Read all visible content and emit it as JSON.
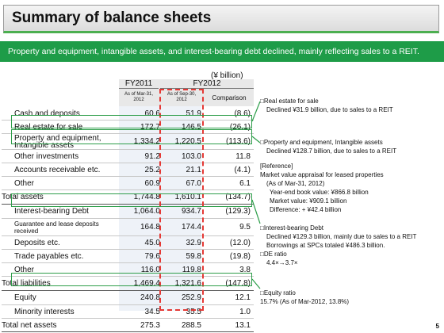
{
  "title": "Summary of balance sheets",
  "subtitle": "Property and equipment, intangible assets, and interest-bearing debt declined, mainly reflecting sales to a REIT.",
  "unit": "(¥ billion)",
  "header": {
    "fy2011": "FY2011",
    "fy2012": "FY2012",
    "asof_mar": "As of Mar-31, 2012",
    "asof_sep": "As of Sep-30, 2012",
    "comparison": "Comparison"
  },
  "rows": [
    {
      "label": "Cash and deposits",
      "v1": "60.6",
      "v2": "51.9",
      "v3": "(8.6)"
    },
    {
      "label": "Real estate for sale",
      "v1": "172.7",
      "v2": "146.5",
      "v3": "(26.1)"
    },
    {
      "label": "Property and equipment, Intangible assets",
      "v1": "1,334.2",
      "v2": "1,220.5",
      "v3": "(113.6)"
    },
    {
      "label": "Other investments",
      "v1": "91.2",
      "v2": "103.0",
      "v3": "11.8"
    },
    {
      "label": "Accounts receivable etc.",
      "v1": "25.2",
      "v2": "21.1",
      "v3": "(4.1)"
    },
    {
      "label": "Other",
      "v1": "60.9",
      "v2": "67.0",
      "v3": "6.1"
    },
    {
      "label": "Total assets",
      "v1": "1,744.8",
      "v2": "1,610.1",
      "v3": "(134.7)"
    },
    {
      "label": "Interest-bearing Debt",
      "v1": "1,064.0",
      "v2": "934.7",
      "v3": "(129.3)"
    },
    {
      "label": "Guarantee and lease deposits received",
      "v1": "164.8",
      "v2": "174.4",
      "v3": "9.5"
    },
    {
      "label": "Deposits etc.",
      "v1": "45.0",
      "v2": "32.9",
      "v3": "(12.0)"
    },
    {
      "label": "Trade payables etc.",
      "v1": "79.6",
      "v2": "59.8",
      "v3": "(19.8)"
    },
    {
      "label": "Other",
      "v1": "116.0",
      "v2": "119.8",
      "v3": "3.8"
    },
    {
      "label": "Total liabilities",
      "v1": "1,469.4",
      "v2": "1,321.6",
      "v3": "(147.8)"
    },
    {
      "label": "Equity",
      "v1": "240.8",
      "v2": "252.9",
      "v3": "12.1"
    },
    {
      "label": "Minority interests",
      "v1": "34.5",
      "v2": "35.5",
      "v3": "1.0"
    },
    {
      "label": "Total net assets",
      "v1": "275.3",
      "v2": "288.5",
      "v3": "13.1"
    }
  ],
  "notes": {
    "n1": [
      "□Real estate for sale",
      "Declined ¥31.9 billion, due to sales to a REIT"
    ],
    "n2": [
      "□Property and equipment, Intangible assets",
      "Declined ¥128.7 billion, due to sales to a REIT"
    ],
    "n3": [
      "[Reference]",
      "Market value appraisal for leased properties",
      "(As of Mar-31, 2012)",
      "Year-end book value: ¥866.8 billion",
      "Market value: ¥909.1 billion",
      "Difference: + ¥42.4 billion"
    ],
    "n4": [
      "□Interest-bearing Debt",
      "Declined ¥129.3 billion, mainly due to sales to a REIT",
      "Borrowings at SPCs totaled ¥486.3 billion.",
      "□DE ratio",
      "4.4×→3.7×"
    ],
    "n5": [
      "□Equity ratio",
      "15.7% (As of Mar-2012, 13.8%)"
    ]
  },
  "page_number": "5",
  "colors": {
    "green": "#1e9c48",
    "red": "#e53935",
    "header_gray": "#e8e8e8"
  }
}
